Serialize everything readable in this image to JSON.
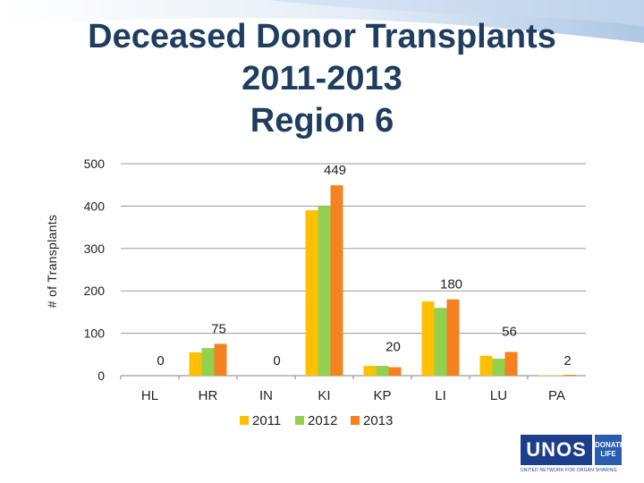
{
  "slide": {
    "title_lines": [
      "Deceased Donor Transplants",
      "2011-2013",
      "Region 6"
    ]
  },
  "logo": {
    "text": "UNOS",
    "badge_text": "DONATE LIFE",
    "subtitle": "UNITED NETWORK FOR ORGAN SHARING"
  },
  "colors": {
    "title": "#1f3d5f",
    "series_2011": "#FFC000",
    "series_2012": "#92D050",
    "series_2013": "#F58220",
    "gridline": "#9a9a9a"
  },
  "chart_data": {
    "type": "bar",
    "title": "Deceased Donor Transplants 2011-2013 Region 6",
    "xlabel": "",
    "ylabel": "# of Transplants",
    "ylim": [
      0,
      500
    ],
    "yticks": [
      0,
      100,
      200,
      300,
      400,
      500
    ],
    "grid": true,
    "legend_position": "bottom",
    "categories": [
      "HL",
      "HR",
      "IN",
      "KI",
      "KP",
      "LI",
      "LU",
      "PA"
    ],
    "series": [
      {
        "name": "2011",
        "values": [
          0,
          55,
          0,
          390,
          23,
          175,
          47,
          1
        ]
      },
      {
        "name": "2012",
        "values": [
          0,
          65,
          0,
          400,
          23,
          160,
          40,
          1
        ]
      },
      {
        "name": "2013",
        "values": [
          0,
          75,
          0,
          449,
          20,
          180,
          56,
          2
        ]
      }
    ],
    "data_labels": {
      "series": "2013",
      "values": [
        "0",
        "75",
        "0",
        "449",
        "20",
        "180",
        "56",
        "2"
      ]
    }
  }
}
